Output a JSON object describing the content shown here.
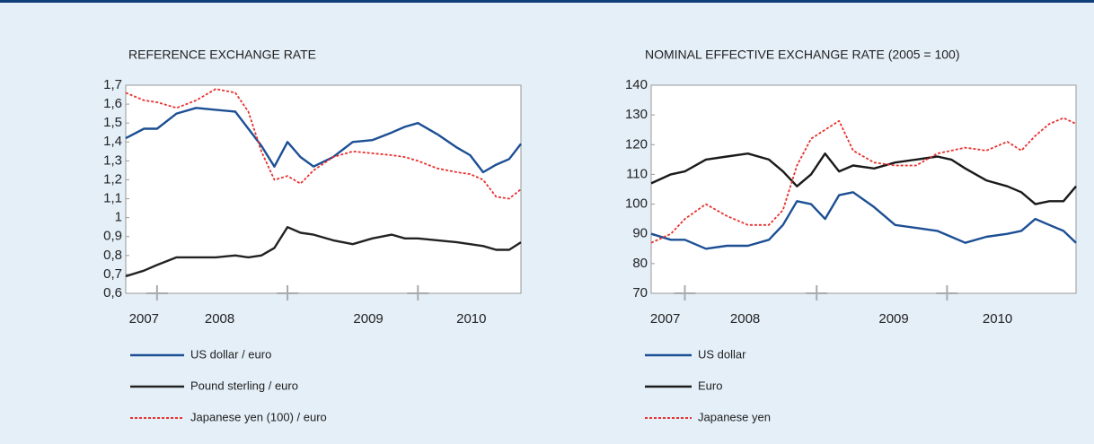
{
  "chart_data": [
    {
      "type": "line",
      "title": "REFERENCE EXCHANGE RATE",
      "x": [
        2007.76,
        2007.9,
        2008.0,
        2008.15,
        2008.3,
        2008.45,
        2008.6,
        2008.7,
        2008.8,
        2008.9,
        2009.0,
        2009.1,
        2009.2,
        2009.35,
        2009.5,
        2009.65,
        2009.8,
        2009.9,
        2010.0,
        2010.15,
        2010.3,
        2010.4,
        2010.5,
        2010.6,
        2010.7,
        2010.79
      ],
      "series": [
        {
          "name": "US dollar / euro",
          "color": "#1c4f94",
          "dash": false,
          "values": [
            1.42,
            1.47,
            1.47,
            1.55,
            1.58,
            1.57,
            1.56,
            1.47,
            1.38,
            1.27,
            1.4,
            1.32,
            1.27,
            1.32,
            1.4,
            1.41,
            1.45,
            1.48,
            1.5,
            1.44,
            1.37,
            1.33,
            1.24,
            1.28,
            1.31,
            1.39
          ]
        },
        {
          "name": "Pound sterling / euro",
          "color": "#222222",
          "dash": false,
          "values": [
            0.69,
            0.72,
            0.75,
            0.79,
            0.79,
            0.79,
            0.8,
            0.79,
            0.8,
            0.84,
            0.95,
            0.92,
            0.91,
            0.88,
            0.86,
            0.89,
            0.91,
            0.89,
            0.89,
            0.88,
            0.87,
            0.86,
            0.85,
            0.83,
            0.83,
            0.87
          ]
        },
        {
          "name": "Japanese yen (100) / euro",
          "color": "#e8312f",
          "dash": true,
          "values": [
            1.66,
            1.62,
            1.61,
            1.58,
            1.62,
            1.68,
            1.66,
            1.56,
            1.35,
            1.2,
            1.22,
            1.18,
            1.25,
            1.32,
            1.35,
            1.34,
            1.33,
            1.32,
            1.3,
            1.26,
            1.24,
            1.23,
            1.2,
            1.11,
            1.1,
            1.15
          ]
        }
      ],
      "xlim": [
        2007.76,
        2010.79
      ],
      "xticks": [
        {
          "value": 2007.9,
          "label": "2007"
        },
        {
          "value": 2008.48,
          "label": "2008"
        },
        {
          "value": 2009.62,
          "label": "2009"
        },
        {
          "value": 2010.41,
          "label": "2010"
        }
      ],
      "year_marks": [
        2008,
        2009,
        2010
      ],
      "ylim": [
        0.6,
        1.7
      ],
      "yticks": [
        {
          "value": 0.6,
          "label": "0,6"
        },
        {
          "value": 0.7,
          "label": "0,7"
        },
        {
          "value": 0.8,
          "label": "0,8"
        },
        {
          "value": 0.9,
          "label": "0,9"
        },
        1,
        {
          "value": 1.1,
          "label": "1,1"
        },
        {
          "value": 1.2,
          "label": "1,2"
        },
        {
          "value": 1.3,
          "label": "1,3"
        },
        {
          "value": 1.4,
          "label": "1,4"
        },
        {
          "value": 1.5,
          "label": "1,5"
        },
        {
          "value": 1.6,
          "label": "1,6"
        },
        {
          "value": 1.7,
          "label": "1,7"
        }
      ]
    },
    {
      "type": "line",
      "title": "NOMINAL EFFECTIVE EXCHANGE RATE (2005 = 100)",
      "x": [
        2007.76,
        2007.9,
        2008.0,
        2008.15,
        2008.3,
        2008.45,
        2008.6,
        2008.7,
        2008.8,
        2008.9,
        2009.0,
        2009.1,
        2009.2,
        2009.35,
        2009.5,
        2009.65,
        2009.8,
        2009.9,
        2010.0,
        2010.15,
        2010.3,
        2010.4,
        2010.5,
        2010.6,
        2010.7,
        2010.79
      ],
      "series": [
        {
          "name": "US dollar",
          "color": "#1c4f94",
          "dash": false,
          "values": [
            90,
            88,
            88,
            85,
            86,
            86,
            88,
            93,
            101,
            100,
            95,
            103,
            104,
            99,
            93,
            92,
            91,
            89,
            87,
            89,
            90,
            91,
            95,
            93,
            91,
            87
          ]
        },
        {
          "name": "Euro",
          "color": "#1a1a1a",
          "dash": false,
          "values": [
            107,
            110,
            111,
            115,
            116,
            117,
            115,
            111,
            106,
            110,
            117,
            111,
            113,
            112,
            114,
            115,
            116,
            115,
            112,
            108,
            106,
            104,
            100,
            101,
            101,
            106
          ]
        },
        {
          "name": "Japanese yen",
          "color": "#e8312f",
          "dash": true,
          "values": [
            87,
            90,
            95,
            100,
            96,
            93,
            93,
            98,
            113,
            122,
            125,
            128,
            118,
            114,
            113,
            113,
            117,
            118,
            119,
            118,
            121,
            118,
            123,
            127,
            129,
            127
          ]
        }
      ],
      "xlim": [
        2007.76,
        2010.79
      ],
      "xticks": [
        {
          "value": 2007.86,
          "label": "2007"
        },
        {
          "value": 2008.43,
          "label": "2008"
        },
        {
          "value": 2009.49,
          "label": "2009"
        },
        {
          "value": 2010.23,
          "label": "2010"
        }
      ],
      "year_marks": [
        2008,
        2008.94,
        2009.87
      ],
      "ylim": [
        70,
        140
      ],
      "yticks": [
        70,
        80,
        90,
        100,
        110,
        120,
        130,
        140
      ]
    }
  ]
}
